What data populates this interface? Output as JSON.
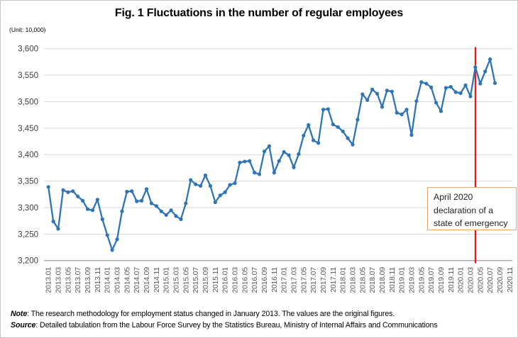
{
  "chart_data": {
    "type": "line",
    "title": "Fig. 1 Fluctuations in the number of regular employees",
    "unit_label": "(Unit: 10,000)",
    "xlabel": "",
    "ylabel": "",
    "ylim": [
      3200,
      3600
    ],
    "ytick_step": 50,
    "grid": true,
    "legend": "none",
    "y_tick_labels": [
      "3,200",
      "3,250",
      "3,300",
      "3,350",
      "3,400",
      "3,450",
      "3,500",
      "3,550",
      "3,600"
    ],
    "x_tick_labels": [
      "2013.01",
      "2013.03",
      "2013.05",
      "2013.07",
      "2013.09",
      "2013.11",
      "2014.01",
      "2014.03",
      "2014.05",
      "2014.07",
      "2014.09",
      "2014.11",
      "2015.01",
      "2015.03",
      "2015.05",
      "2015.07",
      "2015.09",
      "2015.11",
      "2016.01",
      "2016.03",
      "2016.05",
      "2016.07",
      "2016.09",
      "2016.11",
      "2017.01",
      "2017.03",
      "2017.05",
      "2017.07",
      "2017.09",
      "2017.11",
      "2018.01",
      "2018.03",
      "2018.05",
      "2018.07",
      "2018.09",
      "2018.11",
      "2019.01",
      "2019.03",
      "2019.05",
      "2019.07",
      "2019.09",
      "2019.11",
      "2020.01",
      "2020.03",
      "2020.05",
      "2020.07",
      "2020.09",
      "2020.11"
    ],
    "x_start": "2013.01",
    "x_end": "2020.08",
    "frequency": "monthly",
    "series": [
      {
        "name": "Regular employees",
        "color": "#2e75b6",
        "values": [
          3339,
          3274,
          3260,
          3333,
          3329,
          3331,
          3321,
          3313,
          3297,
          3295,
          3315,
          3278,
          3248,
          3220,
          3240,
          3293,
          3330,
          3331,
          3312,
          3313,
          3335,
          3308,
          3303,
          3293,
          3286,
          3295,
          3284,
          3278,
          3308,
          3352,
          3344,
          3341,
          3361,
          3341,
          3310,
          3323,
          3329,
          3343,
          3346,
          3385,
          3387,
          3388,
          3366,
          3363,
          3406,
          3416,
          3366,
          3388,
          3405,
          3399,
          3376,
          3401,
          3436,
          3456,
          3427,
          3422,
          3485,
          3486,
          3457,
          3452,
          3444,
          3431,
          3419,
          3466,
          3514,
          3503,
          3523,
          3515,
          3490,
          3521,
          3519,
          3479,
          3476,
          3485,
          3437,
          3501,
          3537,
          3534,
          3527,
          3498,
          3482,
          3526,
          3528,
          3518,
          3516,
          3531,
          3510,
          3565,
          3534,
          3557,
          3580,
          3535
        ]
      }
    ],
    "vline": {
      "x": "2020.04",
      "month_index": 87,
      "color": "#ff0000"
    },
    "annotation": {
      "lines": [
        "April 2020",
        "declaration of a",
        "state of emergency"
      ],
      "border_color": "#eda877"
    }
  },
  "notes": [
    {
      "label": "Note",
      "text": ": The research methodology for employment status changed in January 2013. The values are the original figures."
    },
    {
      "label": "Source",
      "text": ": Detailed tabulation from the Labour Force Survey by the Statistics Bureau, Ministry of Internal Affairs and Communications"
    }
  ]
}
